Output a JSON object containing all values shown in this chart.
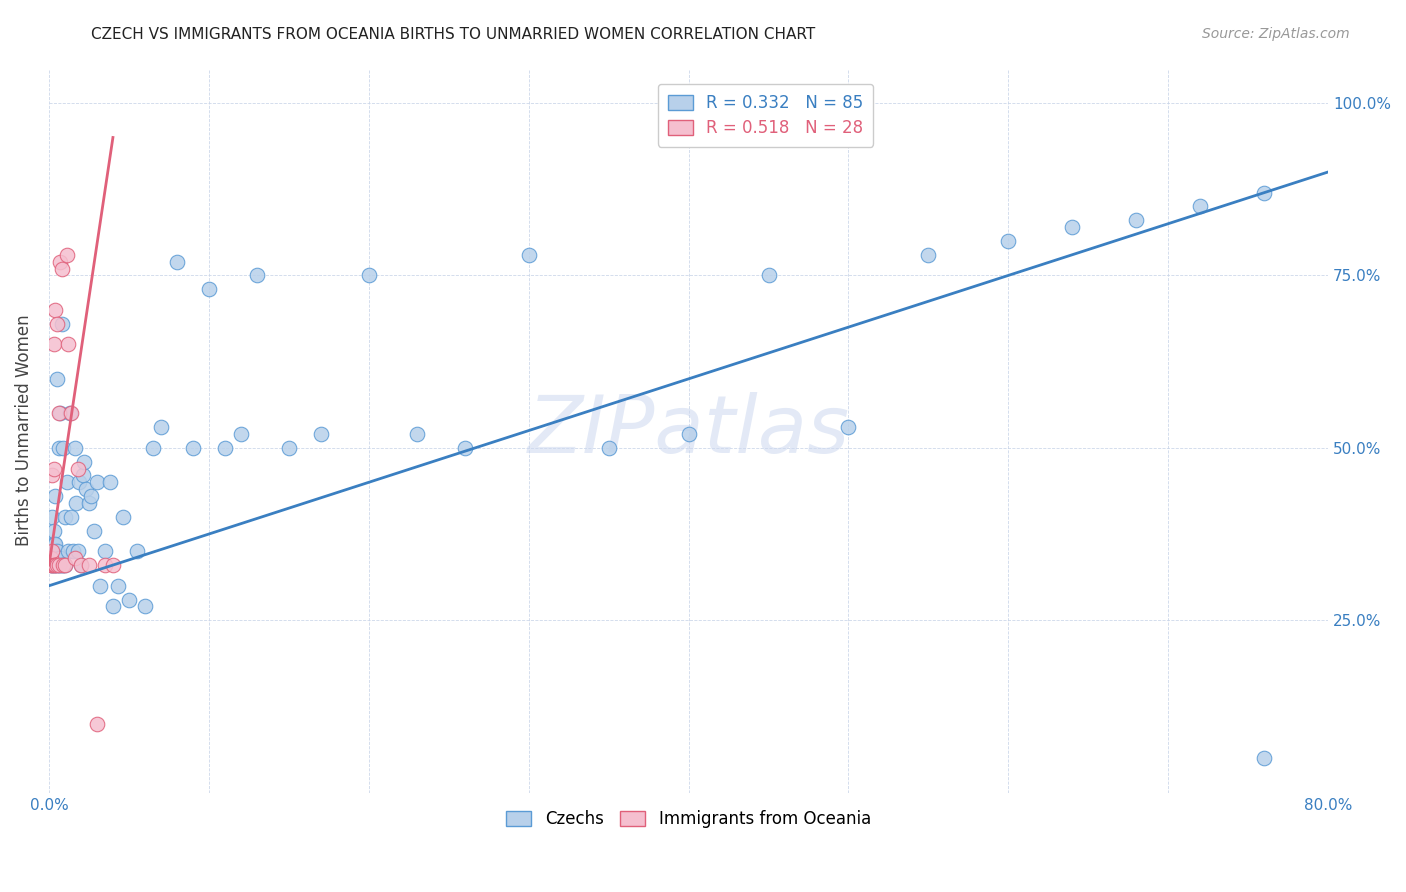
{
  "title": "CZECH VS IMMIGRANTS FROM OCEANIA BIRTHS TO UNMARRIED WOMEN CORRELATION CHART",
  "source": "Source: ZipAtlas.com",
  "ylabel": "Births to Unmarried Women",
  "legend1_label": "Czechs",
  "legend2_label": "Immigrants from Oceania",
  "R1": 0.332,
  "N1": 85,
  "R2": 0.518,
  "N2": 28,
  "color_czech_fill": "#b8d0ea",
  "color_czech_edge": "#5b9bd5",
  "color_oceania_fill": "#f5bfcf",
  "color_oceania_edge": "#e0607a",
  "color_line_czech": "#3a7fc1",
  "color_line_oceania": "#e0607a",
  "watermark_color": "#ccd8ef",
  "background": "#ffffff",
  "xlim": [
    0,
    0.8
  ],
  "ylim": [
    0,
    1.05
  ],
  "scatter_size": 110,
  "line_width": 2.0,
  "czech_x": [
    0.001,
    0.001,
    0.001,
    0.002,
    0.002,
    0.002,
    0.002,
    0.002,
    0.003,
    0.003,
    0.003,
    0.003,
    0.003,
    0.004,
    0.004,
    0.004,
    0.004,
    0.004,
    0.005,
    0.005,
    0.005,
    0.005,
    0.006,
    0.006,
    0.006,
    0.007,
    0.007,
    0.007,
    0.008,
    0.008,
    0.009,
    0.009,
    0.01,
    0.01,
    0.011,
    0.012,
    0.013,
    0.014,
    0.015,
    0.016,
    0.017,
    0.018,
    0.019,
    0.02,
    0.021,
    0.022,
    0.023,
    0.025,
    0.026,
    0.028,
    0.03,
    0.032,
    0.035,
    0.038,
    0.04,
    0.043,
    0.046,
    0.05,
    0.055,
    0.06,
    0.065,
    0.07,
    0.08,
    0.09,
    0.1,
    0.11,
    0.12,
    0.13,
    0.15,
    0.17,
    0.2,
    0.23,
    0.26,
    0.3,
    0.35,
    0.4,
    0.45,
    0.5,
    0.55,
    0.6,
    0.64,
    0.68,
    0.72,
    0.76,
    0.76
  ],
  "czech_y": [
    0.33,
    0.34,
    0.35,
    0.33,
    0.34,
    0.35,
    0.36,
    0.4,
    0.33,
    0.34,
    0.35,
    0.36,
    0.38,
    0.33,
    0.34,
    0.35,
    0.36,
    0.43,
    0.33,
    0.34,
    0.35,
    0.6,
    0.33,
    0.34,
    0.5,
    0.33,
    0.34,
    0.55,
    0.33,
    0.68,
    0.33,
    0.5,
    0.33,
    0.4,
    0.45,
    0.35,
    0.55,
    0.4,
    0.35,
    0.5,
    0.42,
    0.35,
    0.45,
    0.33,
    0.46,
    0.48,
    0.44,
    0.42,
    0.43,
    0.38,
    0.45,
    0.3,
    0.35,
    0.45,
    0.27,
    0.3,
    0.4,
    0.28,
    0.35,
    0.27,
    0.5,
    0.53,
    0.77,
    0.5,
    0.73,
    0.5,
    0.52,
    0.75,
    0.5,
    0.52,
    0.75,
    0.52,
    0.5,
    0.78,
    0.5,
    0.52,
    0.75,
    0.53,
    0.78,
    0.8,
    0.82,
    0.83,
    0.85,
    0.87,
    0.05
  ],
  "oceania_x": [
    0.001,
    0.001,
    0.002,
    0.002,
    0.002,
    0.003,
    0.003,
    0.003,
    0.004,
    0.004,
    0.005,
    0.005,
    0.006,
    0.006,
    0.007,
    0.008,
    0.009,
    0.01,
    0.011,
    0.012,
    0.014,
    0.016,
    0.018,
    0.02,
    0.025,
    0.03,
    0.035,
    0.04
  ],
  "oceania_y": [
    0.33,
    0.34,
    0.33,
    0.35,
    0.46,
    0.33,
    0.47,
    0.65,
    0.33,
    0.7,
    0.33,
    0.68,
    0.33,
    0.55,
    0.77,
    0.76,
    0.33,
    0.33,
    0.78,
    0.65,
    0.55,
    0.34,
    0.47,
    0.33,
    0.33,
    0.1,
    0.33,
    0.33
  ],
  "line_czech_x0": 0.0,
  "line_czech_y0": 0.3,
  "line_czech_x1": 0.8,
  "line_czech_y1": 0.9,
  "line_oceania_x0": 0.0,
  "line_oceania_y0": 0.33,
  "line_oceania_x1": 0.04,
  "line_oceania_y1": 0.95
}
